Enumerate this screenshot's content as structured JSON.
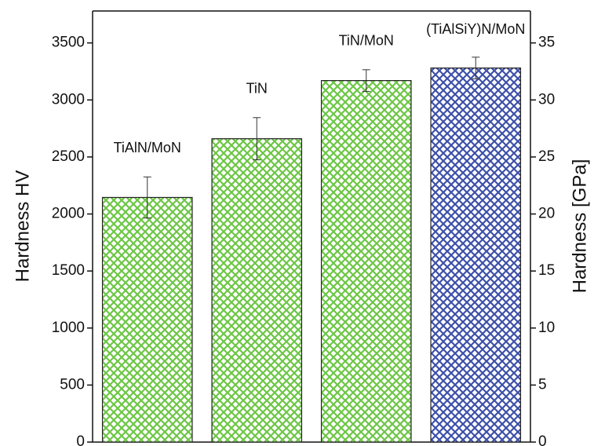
{
  "chart_data": {
    "type": "bar",
    "categories": [
      "TiAlN/MoN",
      "TiN",
      "TiN/MoN",
      "(TiAlSiY)N/MoN"
    ],
    "values": [
      2145,
      2660,
      3170,
      3280
    ],
    "errors": [
      180,
      185,
      95,
      95
    ],
    "colors": [
      "#6cc644",
      "#6cc644",
      "#6cc644",
      "#3d50a8"
    ],
    "ylabel": "Hardness HV",
    "y2label": "Hardness [GPa]",
    "ylim": [
      0,
      3780
    ],
    "yticks": [
      0,
      500,
      1000,
      1500,
      2000,
      2500,
      3000,
      3500
    ],
    "y2lim": [
      0,
      37.8
    ],
    "y2ticks": [
      0,
      5,
      10,
      15,
      20,
      25,
      30,
      35
    ],
    "grid": false
  }
}
